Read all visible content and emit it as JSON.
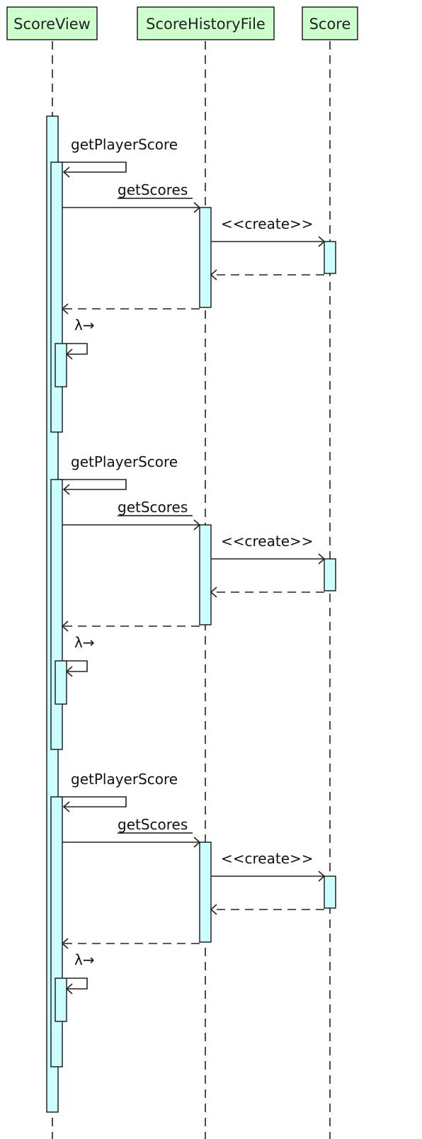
{
  "diagram": {
    "type": "sequence",
    "participants": [
      {
        "id": "scoreview",
        "label": "ScoreView"
      },
      {
        "id": "scorehistoryfile",
        "label": "ScoreHistoryFile"
      },
      {
        "id": "score",
        "label": "Score"
      }
    ],
    "iterations": [
      {
        "self_call_label": "getPlayerScore",
        "call_label": "getScores",
        "create_label": "<<create>>",
        "lambda_label": "λ→"
      },
      {
        "self_call_label": "getPlayerScore",
        "call_label": "getScores",
        "create_label": "<<create>>",
        "lambda_label": "λ→"
      },
      {
        "self_call_label": "getPlayerScore",
        "call_label": "getScores",
        "create_label": "<<create>>",
        "lambda_label": "λ→"
      }
    ],
    "colors": {
      "participant_fill": "#ccffcc",
      "activation_fill": "#ccffff",
      "line": "#222222"
    }
  }
}
